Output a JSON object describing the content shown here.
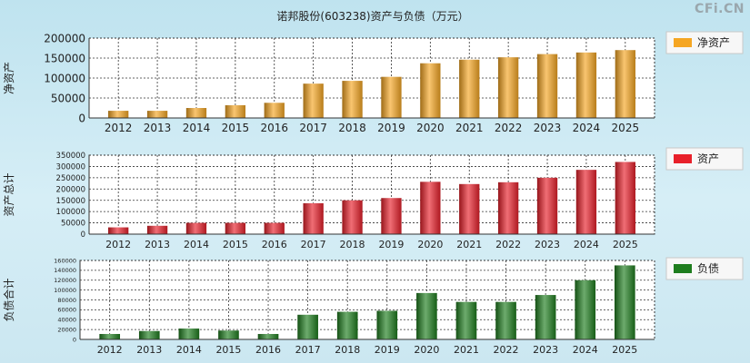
{
  "title": "诺邦股份(603238)资产与负债（万元）",
  "watermark": "CFi.CN",
  "chart_data": [
    {
      "type": "bar",
      "ylabel": "净资产",
      "legend": "净资产",
      "color": "#f5a623",
      "categories": [
        "2012",
        "2013",
        "2014",
        "2015",
        "2016",
        "2017",
        "2018",
        "2019",
        "2020",
        "2021",
        "2022",
        "2023",
        "2024",
        "2025"
      ],
      "values": [
        18000,
        18000,
        25000,
        32000,
        38000,
        86000,
        93000,
        103000,
        137000,
        146000,
        152000,
        160000,
        164000,
        170000
      ],
      "ylim": [
        0,
        200000
      ],
      "yticks": [
        0,
        50000,
        100000,
        150000,
        200000
      ],
      "grid": true,
      "legend_position": "right"
    },
    {
      "type": "bar",
      "ylabel": "资产总计",
      "legend": "资产",
      "color": "#e8202a",
      "categories": [
        "2012",
        "2013",
        "2014",
        "2015",
        "2016",
        "2017",
        "2018",
        "2019",
        "2020",
        "2021",
        "2022",
        "2023",
        "2024",
        "2025"
      ],
      "values": [
        30000,
        37000,
        50000,
        50000,
        50000,
        137000,
        150000,
        160000,
        232000,
        222000,
        230000,
        250000,
        285000,
        320000
      ],
      "ylim": [
        0,
        350000
      ],
      "yticks": [
        0,
        50000,
        100000,
        150000,
        200000,
        250000,
        300000,
        350000
      ],
      "grid": true,
      "legend_position": "right"
    },
    {
      "type": "bar",
      "ylabel": "负债合计",
      "legend": "负债",
      "color": "#1e7d1e",
      "categories": [
        "2012",
        "2013",
        "2014",
        "2015",
        "2016",
        "2017",
        "2018",
        "2019",
        "2020",
        "2021",
        "2022",
        "2023",
        "2024",
        "2025"
      ],
      "values": [
        11000,
        17000,
        22000,
        18000,
        11000,
        50000,
        56000,
        58000,
        94000,
        76000,
        76000,
        90000,
        120000,
        150000
      ],
      "ylim": [
        0,
        160000
      ],
      "yticks": [
        0,
        20000,
        40000,
        60000,
        80000,
        100000,
        120000,
        140000,
        160000
      ],
      "grid": true,
      "legend_position": "right"
    }
  ]
}
